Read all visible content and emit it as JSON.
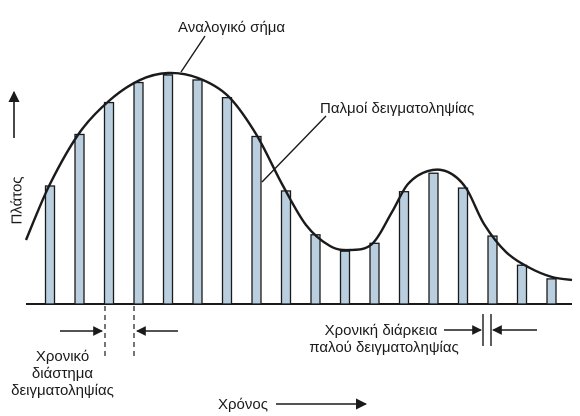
{
  "labels": {
    "analog_signal": "Αναλογικό σήμα",
    "sampling_pulses": "Παλμοί δειγματοληψίας",
    "amplitude": "Πλάτος",
    "time": "Χρόνος",
    "sampling_interval": [
      "Χρονικό",
      "διάστημα",
      "δειγματοληψίας"
    ],
    "pulse_duration": [
      "Χρονική διάρκεια",
      "παλού δειγματοληψίας"
    ]
  },
  "colors": {
    "ink": "#1a1a1a",
    "pulse_fill": "#b9cfe0",
    "background": "#ffffff"
  }
}
